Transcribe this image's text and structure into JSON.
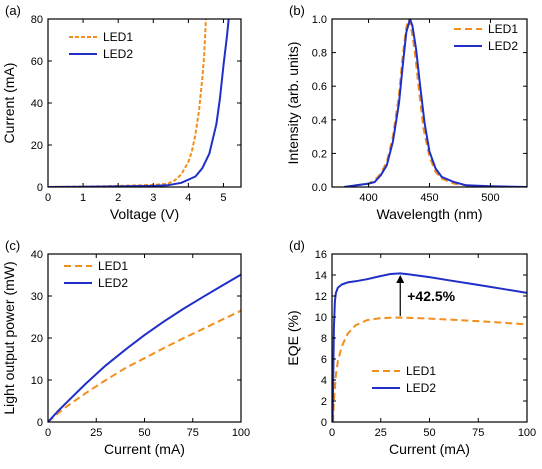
{
  "colors": {
    "led1": "#f28e1c",
    "led2": "#1f2fc8",
    "axis": "#000000"
  },
  "chart_data": [
    {
      "type": "line",
      "panel_label": "(a)",
      "xlabel": "Voltage (V)",
      "ylabel": "Current (mA)",
      "xlim": [
        0,
        5.5
      ],
      "ylim": [
        0,
        80
      ],
      "xticks": [
        "0",
        "1",
        "2",
        "3",
        "4",
        "5"
      ],
      "yticks": [
        "0",
        "20",
        "40",
        "60",
        "80"
      ],
      "legend": "top-left",
      "series": [
        {
          "name": "LED1",
          "style": "dashed",
          "x": [
            0,
            1,
            2,
            3,
            3.4,
            3.6,
            3.8,
            4.0,
            4.1,
            4.2,
            4.3,
            4.4,
            4.45,
            4.5
          ],
          "y": [
            0,
            0.2,
            0.5,
            1.0,
            1.5,
            3,
            6,
            12,
            17,
            25,
            36,
            52,
            63,
            80
          ]
        },
        {
          "name": "LED2",
          "style": "solid",
          "x": [
            0,
            1,
            2,
            3,
            3.4,
            3.8,
            4.2,
            4.4,
            4.6,
            4.8,
            4.9,
            5.0,
            5.1,
            5.15
          ],
          "y": [
            0,
            0.1,
            0.3,
            0.5,
            0.8,
            2,
            5,
            9,
            16,
            30,
            42,
            58,
            72,
            80
          ]
        }
      ]
    },
    {
      "type": "line",
      "panel_label": "(b)",
      "xlabel": "Wavelength (nm)",
      "ylabel": "Intensity (arb. units)",
      "xlim": [
        370,
        530
      ],
      "ylim": [
        0,
        1.0
      ],
      "xticks": [
        "400",
        "450",
        "500"
      ],
      "yticks": [
        "0.0",
        "0.2",
        "0.4",
        "0.6",
        "0.8",
        "1.0"
      ],
      "legend": "top-right",
      "series": [
        {
          "name": "LED1",
          "style": "dashed",
          "x": [
            380,
            390,
            400,
            405,
            410,
            415,
            420,
            425,
            428,
            431,
            433,
            435,
            438,
            441,
            445,
            450,
            455,
            460,
            470,
            480,
            500,
            530
          ],
          "y": [
            0,
            0.01,
            0.02,
            0.04,
            0.08,
            0.15,
            0.3,
            0.55,
            0.78,
            0.95,
            1.0,
            0.95,
            0.8,
            0.6,
            0.35,
            0.18,
            0.09,
            0.05,
            0.02,
            0.01,
            0,
            0
          ]
        },
        {
          "name": "LED2",
          "style": "solid",
          "x": [
            380,
            390,
            400,
            405,
            410,
            415,
            420,
            425,
            428,
            431,
            434,
            436,
            439,
            442,
            446,
            450,
            455,
            460,
            470,
            480,
            500,
            530
          ],
          "y": [
            0,
            0.01,
            0.02,
            0.03,
            0.07,
            0.13,
            0.27,
            0.5,
            0.72,
            0.92,
            1.0,
            0.96,
            0.82,
            0.62,
            0.38,
            0.21,
            0.11,
            0.06,
            0.03,
            0.01,
            0.005,
            0
          ]
        }
      ]
    },
    {
      "type": "line",
      "panel_label": "(c)",
      "xlabel": "Current (mA)",
      "ylabel": "Light output power (mW)",
      "xlim": [
        0,
        100
      ],
      "ylim": [
        0,
        40
      ],
      "xticks": [
        "0",
        "25",
        "50",
        "75",
        "100"
      ],
      "yticks": [
        "0",
        "10",
        "20",
        "30",
        "40"
      ],
      "legend": "top-left",
      "series": [
        {
          "name": "LED1",
          "style": "dashed",
          "x": [
            0,
            5,
            10,
            20,
            30,
            40,
            50,
            60,
            70,
            80,
            90,
            100
          ],
          "y": [
            0,
            2,
            3.8,
            7,
            10,
            12.8,
            15.2,
            17.6,
            19.9,
            22.1,
            24.3,
            26.5
          ]
        },
        {
          "name": "LED2",
          "style": "solid",
          "x": [
            0,
            5,
            10,
            20,
            30,
            40,
            50,
            60,
            70,
            80,
            90,
            100
          ],
          "y": [
            0,
            2.5,
            4.8,
            9.3,
            13.5,
            17.2,
            20.7,
            23.9,
            26.9,
            29.7,
            32.4,
            35.1
          ]
        }
      ]
    },
    {
      "type": "line",
      "panel_label": "(d)",
      "xlabel": "Current (mA)",
      "ylabel": "EQE (%)",
      "xlim": [
        0,
        100
      ],
      "ylim": [
        0,
        16
      ],
      "xticks": [
        "0",
        "25",
        "50",
        "75",
        "100"
      ],
      "yticks": [
        "0",
        "2",
        "4",
        "6",
        "8",
        "10",
        "12",
        "14",
        "16"
      ],
      "legend": "bottom-center",
      "annotation": "+42.5%",
      "series": [
        {
          "name": "LED1",
          "style": "dashed",
          "x": [
            0.5,
            1,
            2,
            3,
            5,
            8,
            12,
            18,
            25,
            35,
            50,
            65,
            80,
            100
          ],
          "y": [
            0,
            2,
            4.5,
            5.8,
            7.2,
            8.4,
            9.2,
            9.7,
            9.9,
            9.95,
            9.85,
            9.7,
            9.55,
            9.3
          ]
        },
        {
          "name": "LED2",
          "style": "solid",
          "x": [
            0.3,
            0.6,
            1,
            1.5,
            2,
            3,
            5,
            8,
            12,
            18,
            25,
            30,
            35,
            40,
            50,
            60,
            70,
            80,
            90,
            100
          ],
          "y": [
            0,
            4,
            9,
            11.5,
            12.3,
            12.8,
            13.1,
            13.3,
            13.4,
            13.6,
            13.9,
            14.1,
            14.15,
            14.05,
            13.8,
            13.5,
            13.2,
            12.9,
            12.6,
            12.3
          ]
        }
      ]
    }
  ]
}
